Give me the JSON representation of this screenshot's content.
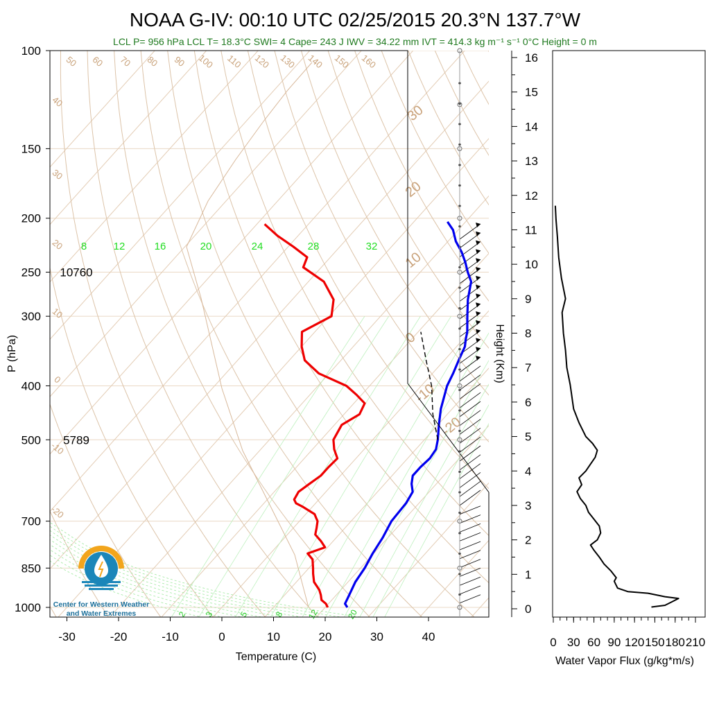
{
  "title": "NOAA G-IV: 00:10 UTC 02/25/2015  20.3°N 137.7°W",
  "subtitle": "LCL P= 956 hPa  LCL T= 18.3°C  SWI= 4  Cape= 243 J  IWV = 34.22 mm  IVT = 414.3 kg m⁻¹ s⁻¹  0°C Height = 0 m",
  "logo": {
    "line1": "Center for Western Weather",
    "line2": "and Water Extremes"
  },
  "chart_data": [
    {
      "type": "line",
      "name": "skew-T log-P sounding",
      "xlabel": "Temperature (C)",
      "ylabel": "P (hPa)",
      "x_ticks": [
        -30,
        -20,
        -10,
        0,
        10,
        20,
        30,
        40
      ],
      "y_ticks": [
        100,
        150,
        200,
        250,
        300,
        400,
        500,
        700,
        850,
        1000
      ],
      "y_scale": "log",
      "height_annotations": [
        {
          "p": 250,
          "label": "10760"
        },
        {
          "p": 500,
          "label": "5789"
        }
      ],
      "dry_adiabat_labels": [
        "50",
        "60",
        "70",
        "80",
        "90",
        "100",
        "110",
        "120",
        "130",
        "140",
        "150",
        "160",
        "40",
        "30",
        "20",
        "10",
        "0",
        "-10",
        "-20"
      ],
      "moist_adiabat_labels": [
        "30",
        "20",
        "10",
        "0",
        "-10",
        "-20"
      ],
      "mixing_ratio_top_labels": [
        "8",
        "12",
        "16",
        "20",
        "24",
        "28",
        "32"
      ],
      "mixing_ratio_bottom_labels": [
        "2",
        "3",
        "5",
        "8",
        "12",
        "20"
      ],
      "series": [
        {
          "name": "temperature",
          "color": "#0000ee",
          "points": [
            [
              1000,
              24.3
            ],
            [
              985,
              23.2
            ],
            [
              950,
              22.5
            ],
            [
              900,
              21.4
            ],
            [
              850,
              20.8
            ],
            [
              800,
              19.8
            ],
            [
              750,
              19.0
            ],
            [
              700,
              17.8
            ],
            [
              650,
              17.5
            ],
            [
              620,
              16.8
            ],
            [
              600,
              15.2
            ],
            [
              580,
              14.0
            ],
            [
              560,
              14.0
            ],
            [
              540,
              14.3
            ],
            [
              520,
              13.9
            ],
            [
              500,
              12.6
            ],
            [
              470,
              10.2
            ],
            [
              440,
              7.8
            ],
            [
              400,
              5.0
            ],
            [
              380,
              4.0
            ],
            [
              360,
              2.8
            ],
            [
              340,
              1.6
            ],
            [
              330,
              0.5
            ],
            [
              320,
              -0.5
            ],
            [
              300,
              -3.2
            ],
            [
              280,
              -6.0
            ],
            [
              260,
              -8.5
            ],
            [
              250,
              -10.8
            ],
            [
              240,
              -13.0
            ],
            [
              230,
              -15.5
            ],
            [
              220,
              -18.5
            ],
            [
              210,
              -21.0
            ],
            [
              203,
              -23.5
            ]
          ]
        },
        {
          "name": "dewpoint",
          "color": "#ee0000",
          "points": [
            [
              1000,
              20.5
            ],
            [
              985,
              19.5
            ],
            [
              970,
              18.0
            ],
            [
              950,
              17.0
            ],
            [
              930,
              15.8
            ],
            [
              900,
              13.4
            ],
            [
              870,
              11.8
            ],
            [
              850,
              10.8
            ],
            [
              820,
              9.2
            ],
            [
              800,
              7.2
            ],
            [
              780,
              9.5
            ],
            [
              760,
              7.6
            ],
            [
              740,
              5.4
            ],
            [
              720,
              4.5
            ],
            [
              700,
              3.5
            ],
            [
              690,
              2.6
            ],
            [
              680,
              1.7
            ],
            [
              660,
              -1.8
            ],
            [
              650,
              -3.8
            ],
            [
              640,
              -4.8
            ],
            [
              620,
              -5.3
            ],
            [
              600,
              -4.6
            ],
            [
              580,
              -3.8
            ],
            [
              560,
              -3.8
            ],
            [
              540,
              -3.6
            ],
            [
              520,
              -5.8
            ],
            [
              500,
              -7.6
            ],
            [
              470,
              -8.6
            ],
            [
              450,
              -7.0
            ],
            [
              430,
              -7.9
            ],
            [
              415,
              -11.0
            ],
            [
              400,
              -14.5
            ],
            [
              380,
              -22.0
            ],
            [
              360,
              -27.0
            ],
            [
              340,
              -30.0
            ],
            [
              320,
              -32.5
            ],
            [
              300,
              -29.5
            ],
            [
              280,
              -32.0
            ],
            [
              260,
              -37.0
            ],
            [
              245,
              -43.5
            ],
            [
              235,
              -44.5
            ],
            [
              225,
              -49.0
            ],
            [
              215,
              -54.0
            ],
            [
              205,
              -58.5
            ]
          ]
        },
        {
          "name": "parcel",
          "color": "#000000",
          "points": [
            [
              500,
              12.6
            ],
            [
              450,
              7.2
            ],
            [
              400,
              2.0
            ],
            [
              360,
              -3.5
            ],
            [
              320,
              -9.5
            ]
          ]
        }
      ]
    },
    {
      "type": "line",
      "name": "water vapor flux profile",
      "xlabel": "Water Vapor Flux (g/kg*m/s)",
      "ylabel": "Height (Km)",
      "x_ticks": [
        "0",
        "30",
        "60",
        "90",
        "120",
        "150",
        "180",
        "210"
      ],
      "y_ticks": [
        "0",
        "1",
        "2",
        "3",
        "4",
        "5",
        "6",
        "7",
        "8",
        "9",
        "10",
        "11",
        "12",
        "13",
        "14",
        "15",
        "16"
      ],
      "xlim": [
        0,
        210
      ],
      "ylim": [
        0,
        16.4
      ],
      "series": [
        {
          "name": "water vapor flux",
          "color": "#000000",
          "points": [
            [
              145,
              0.05
            ],
            [
              165,
              0.1
            ],
            [
              175,
              0.2
            ],
            [
              185,
              0.3
            ],
            [
              165,
              0.35
            ],
            [
              140,
              0.45
            ],
            [
              110,
              0.5
            ],
            [
              95,
              0.6
            ],
            [
              90,
              0.8
            ],
            [
              93,
              0.9
            ],
            [
              85,
              1.1
            ],
            [
              75,
              1.3
            ],
            [
              68,
              1.5
            ],
            [
              60,
              1.7
            ],
            [
              55,
              1.85
            ],
            [
              65,
              2.0
            ],
            [
              70,
              2.2
            ],
            [
              68,
              2.4
            ],
            [
              60,
              2.6
            ],
            [
              52,
              2.8
            ],
            [
              48,
              3.0
            ],
            [
              40,
              3.2
            ],
            [
              35,
              3.4
            ],
            [
              42,
              3.6
            ],
            [
              38,
              3.8
            ],
            [
              48,
              4.0
            ],
            [
              55,
              4.2
            ],
            [
              62,
              4.4
            ],
            [
              65,
              4.6
            ],
            [
              58,
              4.8
            ],
            [
              48,
              5.0
            ],
            [
              38,
              5.4
            ],
            [
              30,
              5.8
            ],
            [
              25,
              6.5
            ],
            [
              20,
              7.0
            ],
            [
              18,
              7.5
            ],
            [
              15,
              8.0
            ],
            [
              13,
              8.6
            ],
            [
              18,
              9.0
            ],
            [
              12,
              9.6
            ],
            [
              8,
              10.2
            ],
            [
              6,
              10.8
            ],
            [
              4,
              11.3
            ],
            [
              3,
              11.7
            ]
          ]
        }
      ]
    }
  ]
}
